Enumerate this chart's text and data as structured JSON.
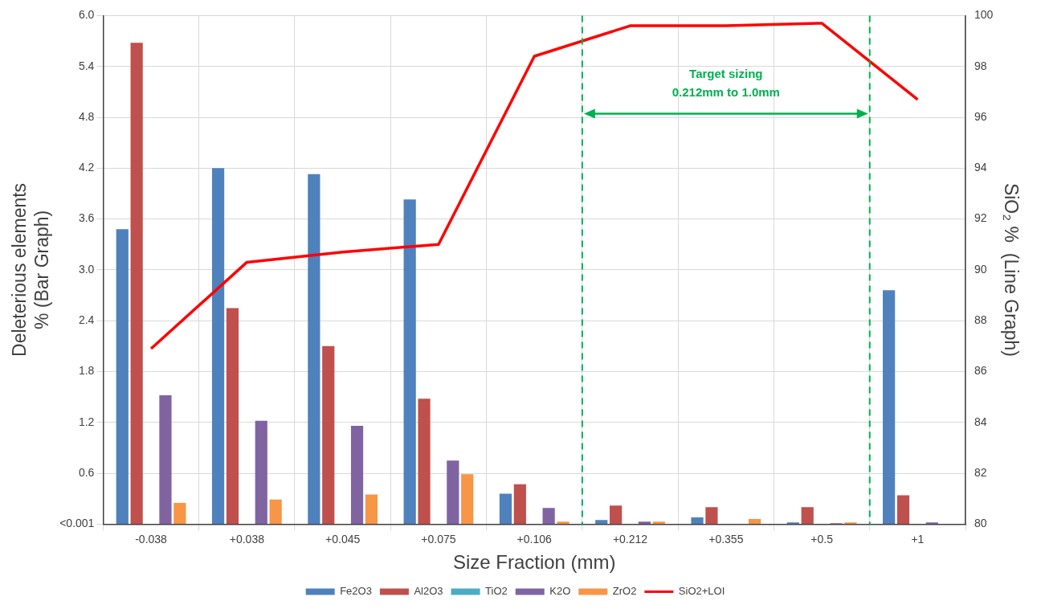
{
  "chart_data": {
    "type": "bar",
    "xlabel": "Size Fraction (mm)",
    "ylabel": "Deleterious elements\n% (Bar Graph)",
    "y2label": "SiO₂ %  (Line Graph)",
    "categories": [
      "-0.038",
      "+0.038",
      "+0.045",
      "+0.075",
      "+0.106",
      "+0.212",
      "+0.355",
      "+0.5",
      "+1"
    ],
    "series": [
      {
        "name": "Fe2O3",
        "color": "#4f81bd",
        "values": [
          3.48,
          4.2,
          4.13,
          3.83,
          0.36,
          0.05,
          0.08,
          0.02,
          2.76
        ]
      },
      {
        "name": "Al2O3",
        "color": "#c0504d",
        "values": [
          5.68,
          2.55,
          2.1,
          1.48,
          0.47,
          0.22,
          0.2,
          0.2,
          0.34
        ]
      },
      {
        "name": "TiO2",
        "color": "#4bacc6",
        "values": [
          0,
          0,
          0,
          0,
          0,
          0,
          0,
          0,
          0
        ]
      },
      {
        "name": "K2O",
        "color": "#8064a2",
        "values": [
          1.52,
          1.22,
          1.16,
          0.75,
          0.19,
          0.03,
          0,
          0.01,
          0.02
        ]
      },
      {
        "name": "ZrO2",
        "color": "#f79646",
        "values": [
          0.25,
          0.29,
          0.35,
          0.59,
          0.03,
          0.03,
          0.06,
          0.02,
          0
        ]
      },
      {
        "name": "SiO2+LOI",
        "type": "line",
        "axis": "y2",
        "color": "#ff0000",
        "values": [
          86.9,
          90.3,
          90.7,
          91.0,
          98.4,
          99.6,
          99.6,
          99.7,
          96.7
        ]
      }
    ],
    "ylim": [
      0,
      6
    ],
    "yticks": [
      {
        "value": 0,
        "label": "<0.001"
      },
      0.6,
      1.2,
      1.8,
      2.4,
      {
        "value": 3,
        "label": "3.0"
      },
      3.6,
      4.2,
      4.8,
      5.4,
      {
        "value": 6,
        "label": "6.0"
      }
    ],
    "y2lim": [
      80,
      100
    ],
    "y2ticks": [
      80,
      82,
      84,
      86,
      88,
      90,
      92,
      94,
      96,
      98,
      100
    ],
    "annotations": [
      "Target sizing\n0.212mm to 1.0mm"
    ],
    "grid": true,
    "legend": "bottom"
  }
}
